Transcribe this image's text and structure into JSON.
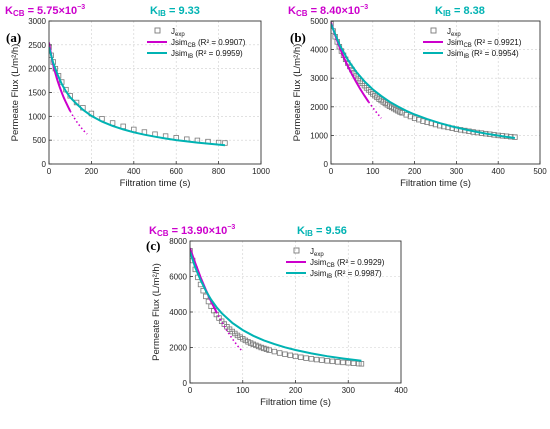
{
  "chart_data": [
    {
      "type": "scatter",
      "panel_label": "(a)",
      "k_cb": {
        "label": "K",
        "sub": "CB",
        "value": " = 5.75×10",
        "exp": "−3"
      },
      "k_ib": {
        "label": "K",
        "sub": "IB",
        "value": " = 9.33"
      },
      "xlabel": "Filtration time (s)",
      "ylabel": "Permeate Flux (L/m²/h)",
      "xlim": [
        0,
        1000
      ],
      "ylim": [
        0,
        3000
      ],
      "xticks": [
        0,
        200,
        400,
        600,
        800,
        1000
      ],
      "yticks": [
        0,
        500,
        1000,
        1500,
        2000,
        2500,
        3000
      ],
      "grid": true,
      "legend_position": "top-right",
      "series": [
        {
          "name": "J",
          "sub": "exp",
          "style": "square-markers",
          "color": "#7a7a7a",
          "x": [
            0,
            10,
            20,
            30,
            45,
            60,
            80,
            100,
            130,
            160,
            200,
            250,
            300,
            350,
            400,
            450,
            500,
            550,
            600,
            650,
            700,
            750,
            800,
            830
          ],
          "y": [
            2450,
            2280,
            2140,
            2000,
            1850,
            1720,
            1560,
            1430,
            1290,
            1180,
            1060,
            950,
            860,
            790,
            725,
            670,
            625,
            585,
            550,
            520,
            495,
            470,
            450,
            440
          ]
        },
        {
          "name": "Jsim",
          "sub": "CB",
          "r2": " (R² = 0.9907)",
          "style": "line",
          "color": "#cc00cc",
          "x": [
            0,
            10,
            20,
            30,
            40,
            50,
            60,
            70,
            80,
            90,
            100,
            110,
            120,
            130,
            140,
            150,
            160,
            170,
            180
          ],
          "y": [
            2550,
            2300,
            2080,
            1900,
            1750,
            1620,
            1500,
            1390,
            1290,
            1200,
            1110,
            1030,
            960,
            890,
            830,
            770,
            720,
            670,
            630
          ],
          "dotted_from_x": 100
        },
        {
          "name": "Jsim",
          "sub": "IB",
          "r2": " (R² = 0.9959)",
          "style": "line",
          "color": "#00b3b3",
          "x": [
            0,
            20,
            40,
            60,
            80,
            100,
            130,
            160,
            200,
            250,
            300,
            350,
            400,
            450,
            500,
            550,
            600,
            650,
            700,
            750,
            800,
            830
          ],
          "y": [
            2450,
            2120,
            1880,
            1680,
            1520,
            1400,
            1260,
            1140,
            1010,
            890,
            800,
            725,
            665,
            615,
            572,
            535,
            502,
            474,
            449,
            427,
            407,
            395
          ]
        }
      ]
    },
    {
      "type": "scatter",
      "panel_label": "(b)",
      "k_cb": {
        "label": "K",
        "sub": "CB",
        "value": " = 8.40×10",
        "exp": "−3"
      },
      "k_ib": {
        "label": "K",
        "sub": "IB",
        "value": " = 8.38"
      },
      "xlabel": "Filtration time (s)",
      "ylabel": "Permeate Flux (L/m²/h)",
      "xlim": [
        0,
        500
      ],
      "ylim": [
        0,
        5000
      ],
      "xticks": [
        0,
        100,
        200,
        300,
        400,
        500
      ],
      "yticks": [
        0,
        1000,
        2000,
        3000,
        4000,
        5000
      ],
      "grid": true,
      "legend_position": "top-right",
      "series": [
        {
          "name": "J",
          "sub": "exp",
          "style": "square-markers",
          "color": "#7a7a7a",
          "x": [
            0,
            5,
            10,
            15,
            20,
            25,
            30,
            35,
            40,
            45,
            50,
            55,
            60,
            65,
            70,
            75,
            80,
            85,
            90,
            95,
            100,
            105,
            110,
            115,
            120,
            125,
            130,
            135,
            140,
            145,
            150,
            155,
            160,
            165,
            170,
            180,
            190,
            200,
            210,
            220,
            230,
            240,
            250,
            260,
            270,
            280,
            290,
            300,
            310,
            320,
            330,
            340,
            350,
            360,
            370,
            380,
            390,
            400,
            410,
            420,
            430,
            440
          ],
          "y": [
            4900,
            4650,
            4450,
            4270,
            4100,
            3950,
            3800,
            3660,
            3530,
            3410,
            3300,
            3190,
            3090,
            2990,
            2900,
            2820,
            2740,
            2660,
            2590,
            2520,
            2450,
            2390,
            2330,
            2270,
            2220,
            2170,
            2120,
            2070,
            2020,
            1980,
            1940,
            1900,
            1860,
            1820,
            1790,
            1720,
            1660,
            1600,
            1550,
            1500,
            1460,
            1420,
            1380,
            1340,
            1310,
            1280,
            1250,
            1220,
            1195,
            1170,
            1145,
            1120,
            1100,
            1080,
            1060,
            1040,
            1020,
            1000,
            985,
            970,
            955,
            940
          ]
        },
        {
          "name": "Jsim",
          "sub": "CB",
          "r2": " (R² = 0.9921)",
          "style": "line",
          "color": "#cc00cc",
          "x": [
            0,
            10,
            20,
            30,
            40,
            50,
            60,
            70,
            80,
            90,
            100,
            110,
            120
          ],
          "y": [
            4950,
            4500,
            4100,
            3750,
            3430,
            3140,
            2870,
            2620,
            2390,
            2170,
            1970,
            1780,
            1600
          ],
          "dotted_from_x": 90
        },
        {
          "name": "Jsim",
          "sub": "IB",
          "r2": " (R² = 0.9954)",
          "style": "line",
          "color": "#00b3b3",
          "x": [
            0,
            20,
            40,
            60,
            80,
            100,
            120,
            140,
            160,
            180,
            200,
            230,
            260,
            290,
            320,
            350,
            380,
            410,
            440
          ],
          "y": [
            4900,
            4180,
            3650,
            3230,
            2890,
            2610,
            2380,
            2180,
            2010,
            1860,
            1730,
            1570,
            1430,
            1310,
            1210,
            1120,
            1040,
            970,
            910
          ]
        }
      ]
    },
    {
      "type": "scatter",
      "panel_label": "(c)",
      "k_cb": {
        "label": "K",
        "sub": "CB",
        "value": " = 13.90×10",
        "exp": "−3"
      },
      "k_ib": {
        "label": "K",
        "sub": "IB",
        "value": " = 9.56"
      },
      "xlabel": "Filtration time (s)",
      "ylabel": "Permeate Flux (L/m²/h)",
      "xlim": [
        0,
        400
      ],
      "ylim": [
        0,
        8000
      ],
      "xticks": [
        0,
        100,
        200,
        300,
        400
      ],
      "yticks": [
        0,
        2000,
        4000,
        6000,
        8000
      ],
      "grid": true,
      "legend_position": "top-right",
      "series": [
        {
          "name": "J",
          "sub": "exp",
          "style": "square-markers",
          "color": "#7a7a7a",
          "x": [
            0,
            5,
            10,
            15,
            20,
            25,
            30,
            35,
            40,
            45,
            50,
            55,
            60,
            65,
            70,
            75,
            80,
            85,
            90,
            95,
            100,
            105,
            110,
            115,
            120,
            125,
            130,
            135,
            140,
            145,
            150,
            160,
            170,
            180,
            190,
            200,
            210,
            220,
            230,
            240,
            250,
            260,
            270,
            280,
            290,
            300,
            310,
            320,
            325
          ],
          "y": [
            7450,
            6900,
            6400,
            5950,
            5550,
            5200,
            4880,
            4590,
            4320,
            4080,
            3860,
            3660,
            3480,
            3320,
            3170,
            3030,
            2900,
            2790,
            2680,
            2580,
            2490,
            2400,
            2320,
            2250,
            2180,
            2120,
            2060,
            2000,
            1950,
            1900,
            1850,
            1770,
            1690,
            1620,
            1560,
            1500,
            1450,
            1400,
            1360,
            1320,
            1290,
            1250,
            1220,
            1190,
            1160,
            1140,
            1110,
            1090,
            1080
          ]
        },
        {
          "name": "Jsim",
          "sub": "CB",
          "r2": " (R² = 0.9929)",
          "style": "line",
          "color": "#cc00cc",
          "x": [
            0,
            10,
            20,
            30,
            40,
            50,
            60,
            70,
            80,
            90,
            100
          ],
          "y": [
            7600,
            6750,
            5950,
            5250,
            4600,
            4000,
            3450,
            2950,
            2500,
            2100,
            1750
          ],
          "dotted_from_x": 50
        },
        {
          "name": "Jsim",
          "sub": "IB",
          "r2": " (R² = 0.9987)",
          "style": "line",
          "color": "#00b3b3",
          "x": [
            0,
            10,
            20,
            30,
            40,
            50,
            60,
            80,
            100,
            120,
            140,
            160,
            180,
            200,
            230,
            260,
            290,
            325
          ],
          "y": [
            7400,
            6500,
            5800,
            5200,
            4700,
            4280,
            3930,
            3390,
            2980,
            2660,
            2400,
            2190,
            2010,
            1860,
            1670,
            1510,
            1380,
            1250
          ]
        }
      ]
    }
  ]
}
